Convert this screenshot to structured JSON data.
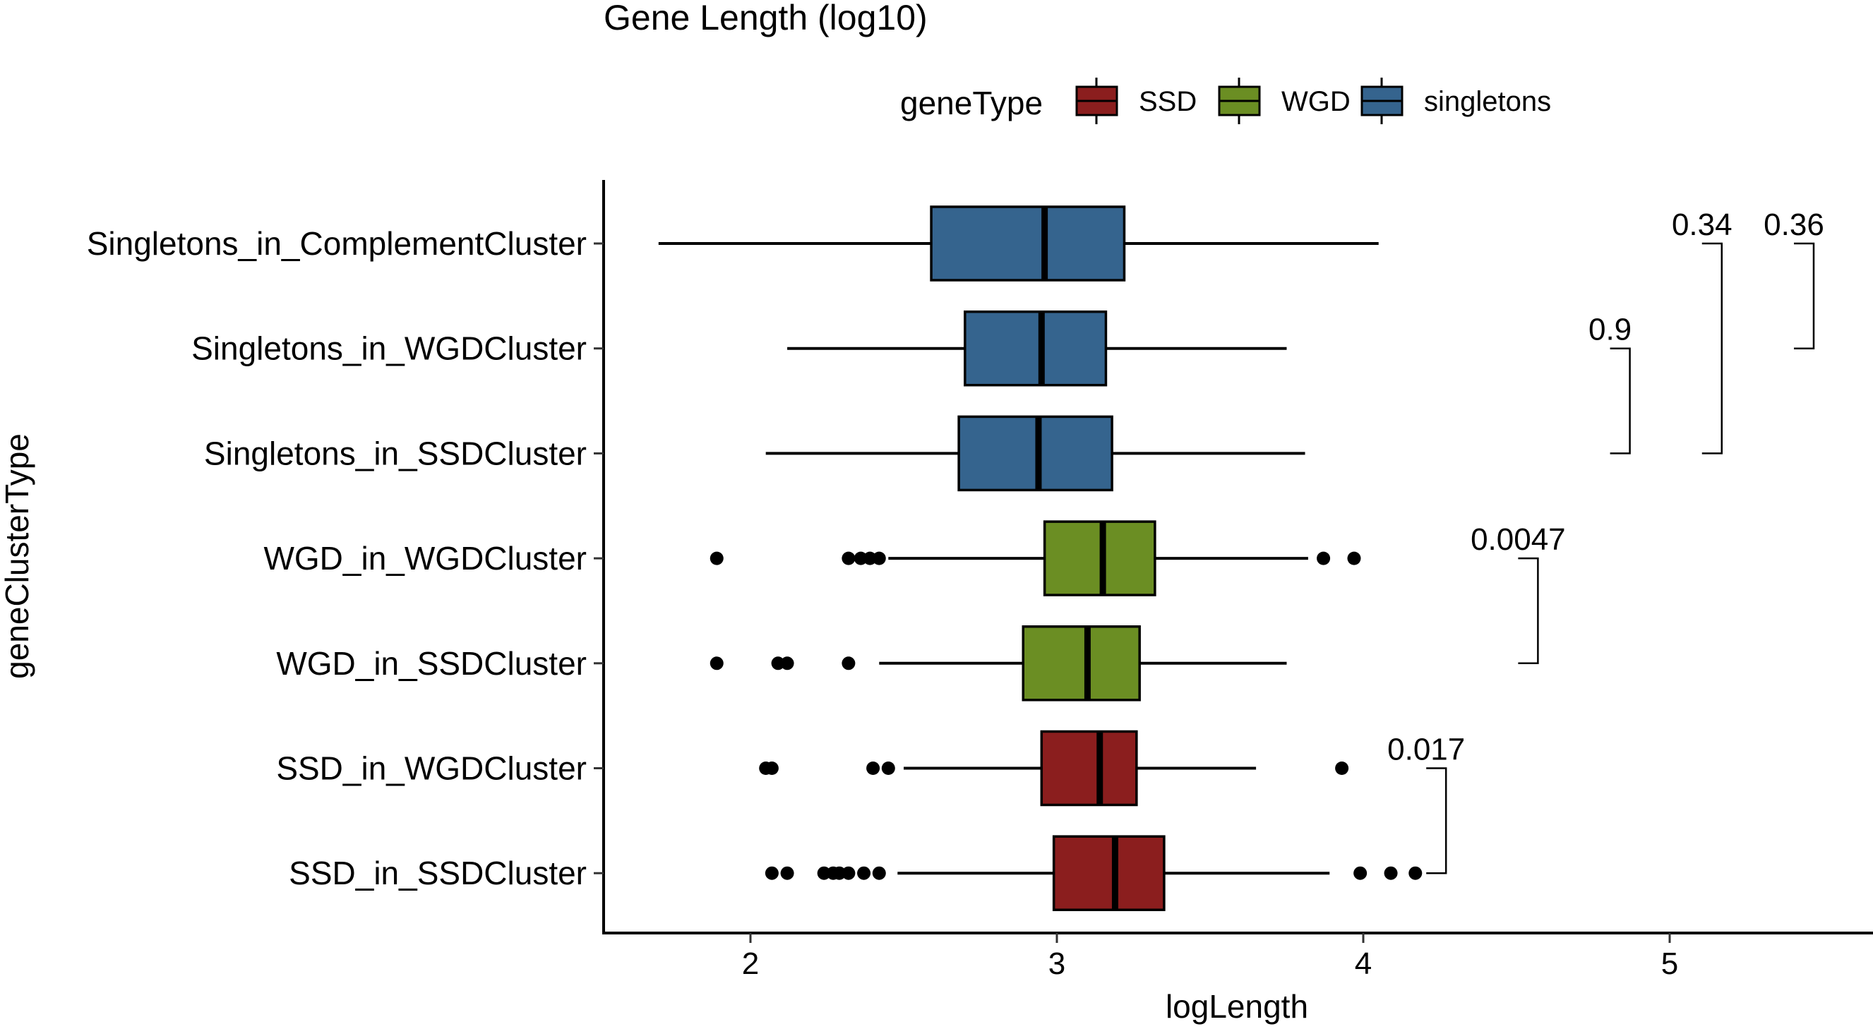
{
  "chart_data": {
    "type": "boxplot",
    "orientation": "horizontal",
    "title": "Gene Length (log10)",
    "xlabel": "logLength",
    "ylabel": "geneClusterType",
    "xlim": [
      1.5,
      5.65
    ],
    "xticks": [
      2,
      3,
      4,
      5
    ],
    "tick_labels": [
      "2",
      "3",
      "4",
      "5"
    ],
    "grid": false,
    "legend": {
      "title": "geneType",
      "placement": "top",
      "items": [
        {
          "name": "SSD",
          "color": "#8B1E1E"
        },
        {
          "name": "WGD",
          "color": "#6B8E23"
        },
        {
          "name": "singletons",
          "color": "#35648E"
        }
      ]
    },
    "categories": [
      "Singletons_in_ComplementCluster",
      "Singletons_in_WGDCluster",
      "Singletons_in_SSDCluster",
      "WGD_in_WGDCluster",
      "WGD_in_SSDCluster",
      "SSD_in_WGDCluster",
      "SSD_in_SSDCluster"
    ],
    "boxes": [
      {
        "category": "Singletons_in_ComplementCluster",
        "geneType": "singletons",
        "whisker_low": 1.7,
        "q1": 2.59,
        "median": 2.96,
        "q3": 3.22,
        "whisker_high": 4.05,
        "outliers": []
      },
      {
        "category": "Singletons_in_WGDCluster",
        "geneType": "singletons",
        "whisker_low": 2.12,
        "q1": 2.7,
        "median": 2.95,
        "q3": 3.16,
        "whisker_high": 3.75,
        "outliers": []
      },
      {
        "category": "Singletons_in_SSDCluster",
        "geneType": "singletons",
        "whisker_low": 2.05,
        "q1": 2.68,
        "median": 2.94,
        "q3": 3.18,
        "whisker_high": 3.81,
        "outliers": []
      },
      {
        "category": "WGD_in_WGDCluster",
        "geneType": "WGD",
        "whisker_low": 2.45,
        "q1": 2.96,
        "median": 3.15,
        "q3": 3.32,
        "whisker_high": 3.82,
        "outliers": [
          1.89,
          2.32,
          2.36,
          2.39,
          2.42,
          3.87,
          3.97
        ]
      },
      {
        "category": "WGD_in_SSDCluster",
        "geneType": "WGD",
        "whisker_low": 2.42,
        "q1": 2.89,
        "median": 3.1,
        "q3": 3.27,
        "whisker_high": 3.75,
        "outliers": [
          1.89,
          2.09,
          2.12,
          2.32
        ]
      },
      {
        "category": "SSD_in_WGDCluster",
        "geneType": "SSD",
        "whisker_low": 2.5,
        "q1": 2.95,
        "median": 3.14,
        "q3": 3.26,
        "whisker_high": 3.65,
        "outliers": [
          2.05,
          2.07,
          2.4,
          2.45,
          3.93
        ]
      },
      {
        "category": "SSD_in_SSDCluster",
        "geneType": "SSD",
        "whisker_low": 2.48,
        "q1": 2.99,
        "median": 3.19,
        "q3": 3.35,
        "whisker_high": 3.89,
        "outliers": [
          2.07,
          2.12,
          2.24,
          2.27,
          2.29,
          2.32,
          2.37,
          2.42,
          3.99,
          4.09,
          4.17
        ]
      }
    ],
    "comparisons": [
      {
        "from": "Singletons_in_ComplementCluster",
        "to": "Singletons_in_WGDCluster",
        "label": "0.36",
        "x": 5.47
      },
      {
        "from": "Singletons_in_ComplementCluster",
        "to": "Singletons_in_SSDCluster",
        "label": "0.34",
        "x": 5.17
      },
      {
        "from": "Singletons_in_WGDCluster",
        "to": "Singletons_in_SSDCluster",
        "label": "0.9",
        "x": 4.87
      },
      {
        "from": "WGD_in_WGDCluster",
        "to": "WGD_in_SSDCluster",
        "label": "0.0047",
        "x": 4.57
      },
      {
        "from": "SSD_in_WGDCluster",
        "to": "SSD_in_SSDCluster",
        "label": "0.017",
        "x": 4.27
      }
    ]
  }
}
